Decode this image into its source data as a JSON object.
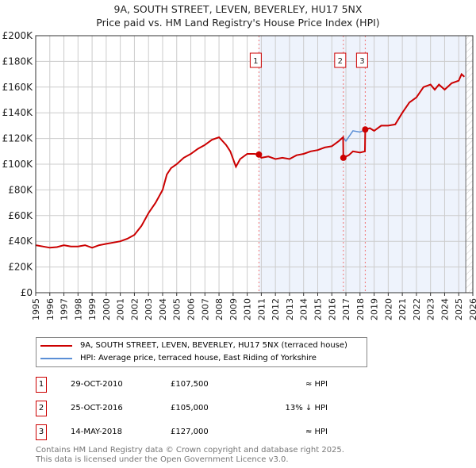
{
  "chart_data": {
    "type": "line",
    "title": "9A, SOUTH STREET, LEVEN, BEVERLEY, HU17 5NX",
    "subtitle": "Price paid vs. HM Land Registry's House Price Index (HPI)",
    "xlim": [
      1995,
      2026
    ],
    "ylim": [
      0,
      200000
    ],
    "x_ticks": [
      "1995",
      "1996",
      "1997",
      "1998",
      "1999",
      "2000",
      "2001",
      "2002",
      "2003",
      "2004",
      "2005",
      "2006",
      "2007",
      "2008",
      "2009",
      "2010",
      "2011",
      "2012",
      "2013",
      "2014",
      "2015",
      "2016",
      "2017",
      "2018",
      "2019",
      "2020",
      "2021",
      "2022",
      "2023",
      "2024",
      "2025",
      "2026"
    ],
    "y_ticks": [
      {
        "v": 0,
        "label": "£0"
      },
      {
        "v": 20000,
        "label": "£20K"
      },
      {
        "v": 40000,
        "label": "£40K"
      },
      {
        "v": 60000,
        "label": "£60K"
      },
      {
        "v": 80000,
        "label": "£80K"
      },
      {
        "v": 100000,
        "label": "£100K"
      },
      {
        "v": 120000,
        "label": "£120K"
      },
      {
        "v": 140000,
        "label": "£140K"
      },
      {
        "v": 160000,
        "label": "£160K"
      },
      {
        "v": 180000,
        "label": "£180K"
      },
      {
        "v": 200000,
        "label": "£200K"
      }
    ],
    "grid": true,
    "shaded_from": 2010.83,
    "hatched_from": 2025.5,
    "series": [
      {
        "name": "HPI",
        "color": "#5b8fd6",
        "x": [
          1995,
          1995.5,
          1996,
          1996.5,
          1997,
          1997.5,
          1998,
          1998.5,
          1999,
          1999.5,
          2000,
          2000.5,
          2001,
          2001.5,
          2002,
          2002.5,
          2003,
          2003.5,
          2004,
          2004.3,
          2004.6,
          2005,
          2005.5,
          2006,
          2006.5,
          2007,
          2007.5,
          2008,
          2008.5,
          2008.8,
          2009.2,
          2009.5,
          2010,
          2010.5,
          2010.83,
          2011,
          2011.5,
          2012,
          2012.5,
          2013,
          2013.5,
          2014,
          2014.5,
          2015,
          2015.5,
          2016,
          2016.5,
          2016.8,
          2017,
          2017.5,
          2018,
          2018.37,
          2018.7,
          2019,
          2019.5,
          2020,
          2020.5,
          2021,
          2021.5,
          2022,
          2022.5,
          2023,
          2023.3,
          2023.6,
          2024,
          2024.5,
          2025,
          2025.2,
          2025.4
        ],
        "y": [
          37000,
          36000,
          35000,
          35500,
          37000,
          36000,
          36000,
          37000,
          35000,
          37000,
          38000,
          39000,
          40000,
          42000,
          45000,
          52000,
          62000,
          70000,
          80000,
          92000,
          97000,
          100000,
          105000,
          108000,
          112000,
          115000,
          119000,
          121000,
          115000,
          110000,
          98000,
          104000,
          108000,
          108000,
          107500,
          105000,
          106000,
          104000,
          105000,
          104000,
          107000,
          108000,
          110000,
          111000,
          113000,
          114000,
          118000,
          121000,
          118000,
          126000,
          125000,
          127000,
          128000,
          126000,
          130000,
          130000,
          131000,
          140000,
          148000,
          152000,
          160000,
          162000,
          158000,
          162000,
          158000,
          163000,
          165000,
          170000,
          168000
        ]
      },
      {
        "name": "Price paid",
        "color": "#cc0000",
        "x": [
          1995,
          1995.5,
          1996,
          1996.5,
          1997,
          1997.5,
          1998,
          1998.5,
          1999,
          1999.5,
          2000,
          2000.5,
          2001,
          2001.5,
          2002,
          2002.5,
          2003,
          2003.5,
          2004,
          2004.3,
          2004.6,
          2005,
          2005.5,
          2006,
          2006.5,
          2007,
          2007.5,
          2008,
          2008.5,
          2008.8,
          2009.2,
          2009.5,
          2010,
          2010.5,
          2010.83,
          2011,
          2011.5,
          2012,
          2012.5,
          2013,
          2013.5,
          2014,
          2014.5,
          2015,
          2015.5,
          2016,
          2016.5,
          2016.8,
          2016.82,
          2017.2,
          2017.5,
          2018,
          2018.35,
          2018.37,
          2018.7,
          2019,
          2019.5,
          2020,
          2020.5,
          2021,
          2021.5,
          2022,
          2022.5,
          2023,
          2023.3,
          2023.6,
          2024,
          2024.5,
          2025,
          2025.2,
          2025.4
        ],
        "y": [
          37000,
          36000,
          35000,
          35500,
          37000,
          36000,
          36000,
          37000,
          35000,
          37000,
          38000,
          39000,
          40000,
          42000,
          45000,
          52000,
          62000,
          70000,
          80000,
          92000,
          97000,
          100000,
          105000,
          108000,
          112000,
          115000,
          119000,
          121000,
          115000,
          110000,
          98000,
          104000,
          108000,
          108000,
          107500,
          105000,
          106000,
          104000,
          105000,
          104000,
          107000,
          108000,
          110000,
          111000,
          113000,
          114000,
          118000,
          121000,
          105000,
          107000,
          110000,
          109000,
          110000,
          127000,
          128000,
          126000,
          130000,
          130000,
          131000,
          140000,
          148000,
          152000,
          160000,
          162000,
          158000,
          162000,
          158000,
          163000,
          165000,
          170000,
          168000
        ]
      }
    ],
    "sales": [
      {
        "label": "1",
        "x": 2010.83,
        "y": 107500
      },
      {
        "label": "2",
        "x": 2016.82,
        "y": 105000
      },
      {
        "label": "3",
        "x": 2018.37,
        "y": 127000
      }
    ]
  },
  "legend": {
    "items": [
      "9A, SOUTH STREET, LEVEN, BEVERLEY, HU17 5NX (terraced house)",
      "HPI: Average price, terraced house, East Riding of Yorkshire"
    ]
  },
  "table": [
    {
      "num": "1",
      "date": "29-OCT-2010",
      "price": "£107,500",
      "hpi": "≈ HPI"
    },
    {
      "num": "2",
      "date": "25-OCT-2016",
      "price": "£105,000",
      "hpi": "13% ↓ HPI"
    },
    {
      "num": "3",
      "date": "14-MAY-2018",
      "price": "£127,000",
      "hpi": "≈ HPI"
    }
  ],
  "footer": [
    "Contains HM Land Registry data © Crown copyright and database right 2025.",
    "This data is licensed under the Open Government Licence v3.0."
  ]
}
